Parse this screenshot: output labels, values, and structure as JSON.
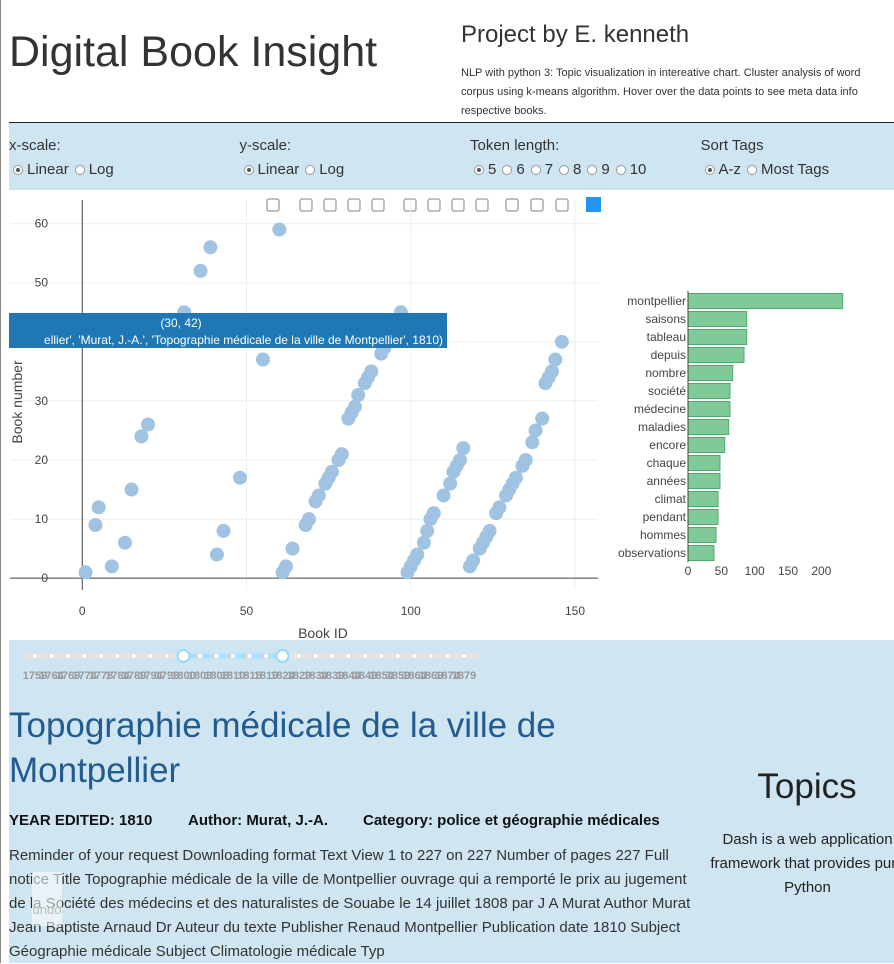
{
  "header": {
    "title": "Digital Book Insight",
    "project": "Project by E. kenneth",
    "description": [
      "NLP with python 3: Topic visualization in intereative chart. Cluster analysis of word",
      "corpus using k-means algorithm. Hover over the data points to see meta data info",
      "respective books."
    ]
  },
  "controls": [
    {
      "label": "x-scale:",
      "options": [
        "Linear",
        "Log"
      ],
      "selected": "Linear"
    },
    {
      "label": "y-scale:",
      "options": [
        "Linear",
        "Log"
      ],
      "selected": "Linear"
    },
    {
      "label": "Token length:",
      "options": [
        5,
        6,
        7,
        8,
        9,
        10
      ],
      "selected": 5
    },
    {
      "label": "Sort Tags",
      "options": [
        "A-z",
        "Most Tags"
      ],
      "selected": "A-z"
    }
  ],
  "chart_data": [
    {
      "type": "scatter",
      "x_label": "Book ID",
      "y_label": "Book number",
      "color": "#9fc3e1",
      "x": [
        1,
        4,
        5,
        9,
        13,
        15,
        18,
        20,
        31,
        30,
        36,
        39,
        41,
        43,
        48,
        55,
        60,
        61,
        62,
        64,
        68,
        69,
        71,
        72,
        74,
        75,
        76,
        78,
        79,
        81,
        82,
        83,
        84,
        86,
        87,
        88,
        91,
        92,
        97,
        99,
        100,
        101,
        102,
        104,
        105,
        106,
        107,
        110,
        112,
        113,
        114,
        115,
        116,
        118,
        119,
        121,
        122,
        123,
        124,
        126,
        127,
        129,
        130,
        131,
        132,
        134,
        135,
        137,
        138,
        140,
        141,
        142,
        143,
        144,
        146
      ],
      "values": [
        1,
        9,
        12,
        2,
        6,
        15,
        24,
        26,
        45,
        42,
        52,
        56,
        4,
        8,
        17,
        37,
        59,
        1,
        2,
        5,
        9,
        10,
        13,
        14,
        16,
        17,
        18,
        20,
        21,
        27,
        28,
        29,
        31,
        33,
        34,
        35,
        38,
        39,
        45,
        1,
        2,
        3,
        4,
        6,
        8,
        10,
        11,
        14,
        16,
        18,
        19,
        20,
        22,
        2,
        3,
        5,
        6,
        7,
        8,
        11,
        12,
        14,
        15,
        16,
        17,
        19,
        20,
        23,
        25,
        27,
        33,
        34,
        35,
        37,
        40
      ],
      "xlim": [
        -22,
        157
      ],
      "xticks": [
        0,
        50,
        100,
        150
      ],
      "ylim": [
        -2,
        64
      ],
      "yticks": [
        0,
        10,
        20,
        30,
        40,
        50,
        60
      ],
      "grid": true,
      "tooltip": {
        "text": "(30, 42)",
        "detail": "ellier', 'Murat,  J.-A.', 'Topographie médicale de la ville de Montpellier', 1810)",
        "color": "#1f77b4"
      }
    },
    {
      "type": "bar",
      "orientation": "horizontal",
      "color": "#82c99a",
      "categories": [
        "montpellier",
        "saisons",
        "tableau",
        "depuis",
        "nombre",
        "société",
        "médecine",
        "maladies",
        "encore",
        "chaque",
        "années",
        "climat",
        "pendant",
        "hommes",
        "observations"
      ],
      "values": [
        232,
        88,
        88,
        84,
        67,
        63,
        63,
        61,
        55,
        48,
        48,
        45,
        45,
        42,
        39
      ],
      "xlim": [
        0,
        240
      ],
      "xticks": [
        0,
        50,
        100,
        150,
        200
      ]
    }
  ],
  "slider": {
    "marks": [
      1759,
      1764,
      1769,
      1774,
      1778,
      1784,
      1789,
      1794,
      1798,
      1800,
      1803,
      1808,
      1810,
      1815,
      1819,
      1824,
      1829,
      1834,
      1839,
      1844,
      1849,
      1854,
      1859,
      1864,
      1869,
      1874,
      1879
    ],
    "selected": [
      1800,
      1824
    ]
  },
  "book": {
    "title": "Topographie médicale de la ville de Montpellier",
    "year": "YEAR EDITED: 1810",
    "author": "Author: Murat, J.-A.",
    "category": "Category: police et géographie médicales",
    "text": "Reminder of your request Downloading format Text View 1 to 227 on 227 Number of pages 227 Full notice Title Topographie médicale de la ville de Montpellier ouvrage qui a remporté le prix au jugement de la Société des médecins et des naturalistes de Souabe le 14 juillet 1808 par J A Murat Author Murat Jean Baptiste Arnaud Dr Auteur du texte Publisher Renaud Montpellier Publication date 1810 Subject Géographie médicale Subject Climatologie médicale Typ"
  },
  "topics": {
    "title": "Topics",
    "text": "Dash is a web application framework that provides pure Python"
  },
  "undo": "undo"
}
